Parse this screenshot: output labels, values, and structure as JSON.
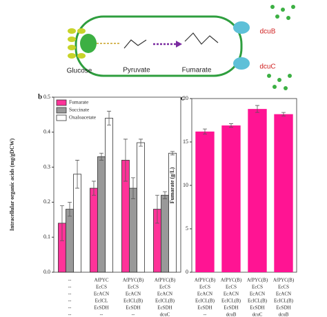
{
  "diagram": {
    "panel": "a",
    "glucose": "Glucose",
    "pyruvate": "Pyruvate",
    "fumarate": "Fumarate",
    "dcub": "dcuB",
    "dcuc": "dcuC"
  },
  "chart_data": [
    {
      "type": "bar",
      "panel": "b",
      "ylabel": "Intracellular organic acids (mg/gDCW)",
      "categories": [
        [
          "--",
          "--",
          "--",
          "--",
          "--",
          "--"
        ],
        [
          "AfPYC",
          "EcCS",
          "EcACN",
          "EcICL",
          "EcSDH",
          "--"
        ],
        [
          "AfPYC(B)",
          "EcCS",
          "EcACN",
          "EcICL(B)",
          "EcSDH",
          "--"
        ],
        [
          "AfPYC(B)",
          "EcCS",
          "EcACN",
          "EcICL(B)",
          "EcSDH",
          "dcuC"
        ]
      ],
      "series": [
        {
          "name": "Fumarate",
          "color": "#ff3399",
          "values": [
            0.14,
            0.24,
            0.32,
            0.18
          ],
          "errors": [
            0.05,
            0.02,
            0.06,
            0.04
          ]
        },
        {
          "name": "Succinate",
          "color": "#999999",
          "values": [
            0.18,
            0.33,
            0.24,
            0.22
          ],
          "errors": [
            0.02,
            0.01,
            0.03,
            0.01
          ]
        },
        {
          "name": "Oxaloacetate",
          "color": "#ffffff",
          "values": [
            0.28,
            0.44,
            0.37,
            0.34
          ],
          "errors": [
            0.04,
            0.02,
            0.01,
            0.005
          ]
        }
      ],
      "ylim": [
        0,
        0.5
      ],
      "yticks": [
        {
          "value": 0,
          "label": "0.0"
        },
        0.1,
        0.2,
        0.3,
        0.4,
        0.5
      ],
      "legend": "upper-left"
    },
    {
      "type": "bar",
      "panel": "c",
      "ylabel": "Fumarate (g/L)",
      "categories": [
        [
          "AfPYC(B)",
          "EcCS",
          "EcACN",
          "EcICL(B)",
          "EcSDH",
          "--"
        ],
        [
          "AfPYC(B)",
          "EcCS",
          "EcACN",
          "EcICL(B)",
          "EcSDH",
          "dcuB"
        ],
        [
          "AfPYC(B)",
          "EcCS",
          "EcACN",
          "EcICL(B)",
          "EcSDH",
          "dcuC"
        ],
        [
          "AfPYC(B)",
          "EcCS",
          "EcACN",
          "EcICL(B)",
          "EcSDH",
          "dcuB"
        ]
      ],
      "series": [
        {
          "color": "#ff1493",
          "values": [
            16.2,
            16.9,
            18.8,
            18.2
          ],
          "errors": [
            0.3,
            0.2,
            0.4,
            0.2
          ]
        }
      ],
      "ylim": [
        0,
        20
      ],
      "yticks": [
        0,
        5,
        10,
        15,
        20
      ]
    }
  ]
}
